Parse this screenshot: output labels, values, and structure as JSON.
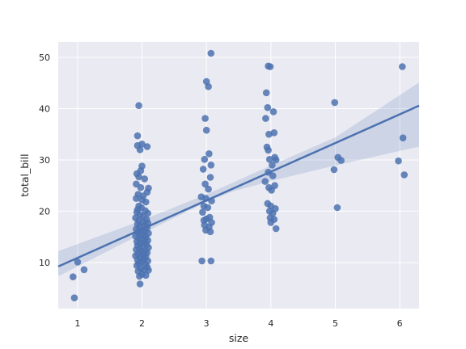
{
  "chart_data": {
    "type": "scatter",
    "xlabel": "size",
    "ylabel": "total_bill",
    "xlim": [
      0.7,
      6.3
    ],
    "ylim": [
      1,
      53
    ],
    "xticks": [
      1,
      2,
      3,
      4,
      5,
      6
    ],
    "yticks": [
      10,
      20,
      30,
      40,
      50
    ],
    "grid": true,
    "colors": {
      "background": "#eaeaf2",
      "grid": "#ffffff",
      "points": "#4c72b0",
      "line": "#4c72b0",
      "band": "#4c72b0"
    },
    "regression": {
      "slope": 5.6,
      "intercept": 5.3,
      "ci_lower": [
        [
          0.7,
          7.3
        ],
        [
          2.0,
          15.6
        ],
        [
          3.0,
          21.8
        ],
        [
          3.4,
          23.8
        ],
        [
          4.0,
          25.9
        ],
        [
          5.0,
          28.9
        ],
        [
          6.3,
          32.6
        ]
      ],
      "ci_upper": [
        [
          0.7,
          12.2
        ],
        [
          2.0,
          18.2
        ],
        [
          3.0,
          23.3
        ],
        [
          3.4,
          25.5
        ],
        [
          4.0,
          28.9
        ],
        [
          5.0,
          34.4
        ],
        [
          6.3,
          45.1
        ]
      ]
    },
    "points": [
      [
        0.93,
        7.2
      ],
      [
        0.95,
        3.1
      ],
      [
        1.0,
        10.1
      ],
      [
        1.1,
        8.6
      ],
      [
        1.95,
        40.6
      ],
      [
        1.93,
        34.7
      ],
      [
        2.0,
        33.1
      ],
      [
        1.93,
        32.8
      ],
      [
        1.97,
        32.0
      ],
      [
        2.08,
        32.6
      ],
      [
        2.0,
        28.8
      ],
      [
        1.98,
        27.9
      ],
      [
        1.92,
        27.3
      ],
      [
        1.95,
        26.7
      ],
      [
        2.04,
        26.3
      ],
      [
        1.91,
        25.3
      ],
      [
        1.98,
        24.6
      ],
      [
        2.1,
        24.5
      ],
      [
        2.08,
        23.7
      ],
      [
        1.94,
        23.3
      ],
      [
        2.02,
        23.0
      ],
      [
        1.91,
        22.5
      ],
      [
        2.0,
        22.2
      ],
      [
        2.06,
        21.8
      ],
      [
        1.95,
        21.0
      ],
      [
        1.99,
        20.7
      ],
      [
        1.93,
        20.3
      ],
      [
        2.05,
        20.1
      ],
      [
        1.92,
        19.8
      ],
      [
        2.09,
        19.6
      ],
      [
        1.97,
        19.3
      ],
      [
        2.02,
        19.0
      ],
      [
        1.9,
        18.7
      ],
      [
        2.07,
        18.4
      ],
      [
        1.95,
        18.2
      ],
      [
        2.01,
        17.9
      ],
      [
        2.09,
        17.7
      ],
      [
        1.93,
        17.5
      ],
      [
        2.04,
        17.2
      ],
      [
        1.96,
        17.0
      ],
      [
        2.08,
        16.8
      ],
      [
        1.91,
        16.5
      ],
      [
        2.0,
        16.3
      ],
      [
        2.05,
        16.1
      ],
      [
        1.94,
        15.9
      ],
      [
        2.1,
        15.7
      ],
      [
        1.97,
        15.5
      ],
      [
        2.03,
        15.3
      ],
      [
        1.9,
        15.1
      ],
      [
        2.06,
        14.9
      ],
      [
        1.95,
        14.7
      ],
      [
        2.0,
        14.5
      ],
      [
        2.09,
        14.3
      ],
      [
        1.92,
        14.1
      ],
      [
        2.04,
        13.9
      ],
      [
        1.97,
        13.7
      ],
      [
        2.07,
        13.5
      ],
      [
        1.93,
        13.3
      ],
      [
        2.01,
        13.1
      ],
      [
        2.1,
        12.9
      ],
      [
        1.96,
        12.7
      ],
      [
        1.91,
        12.5
      ],
      [
        2.05,
        12.3
      ],
      [
        1.99,
        12.1
      ],
      [
        2.08,
        11.9
      ],
      [
        1.94,
        11.7
      ],
      [
        2.02,
        11.5
      ],
      [
        1.9,
        11.3
      ],
      [
        2.06,
        11.1
      ],
      [
        1.97,
        10.9
      ],
      [
        2.03,
        10.7
      ],
      [
        1.93,
        10.5
      ],
      [
        2.09,
        10.3
      ],
      [
        2.0,
        10.1
      ],
      [
        1.95,
        9.8
      ],
      [
        2.05,
        9.6
      ],
      [
        1.92,
        9.4
      ],
      [
        2.08,
        9.1
      ],
      [
        1.98,
        8.8
      ],
      [
        2.03,
        8.6
      ],
      [
        1.94,
        8.3
      ],
      [
        2.1,
        8.5
      ],
      [
        2.0,
        7.7
      ],
      [
        2.06,
        7.5
      ],
      [
        1.96,
        7.3
      ],
      [
        1.97,
        5.8
      ],
      [
        3.07,
        50.8
      ],
      [
        3.0,
        45.3
      ],
      [
        3.03,
        44.3
      ],
      [
        2.98,
        38.1
      ],
      [
        3.0,
        35.8
      ],
      [
        3.04,
        31.2
      ],
      [
        2.97,
        30.1
      ],
      [
        3.07,
        29.0
      ],
      [
        2.95,
        28.2
      ],
      [
        3.06,
        26.6
      ],
      [
        2.98,
        25.3
      ],
      [
        3.03,
        24.3
      ],
      [
        2.92,
        22.8
      ],
      [
        2.99,
        22.5
      ],
      [
        3.08,
        22.0
      ],
      [
        2.96,
        21.0
      ],
      [
        3.02,
        20.7
      ],
      [
        2.94,
        19.8
      ],
      [
        3.05,
        18.8
      ],
      [
        3.0,
        18.5
      ],
      [
        2.96,
        18.2
      ],
      [
        3.08,
        17.8
      ],
      [
        2.97,
        17.3
      ],
      [
        3.04,
        16.9
      ],
      [
        2.99,
        16.3
      ],
      [
        3.06,
        16.0
      ],
      [
        2.93,
        10.3
      ],
      [
        3.07,
        10.3
      ],
      [
        3.96,
        48.3
      ],
      [
        3.99,
        48.2
      ],
      [
        3.93,
        43.1
      ],
      [
        3.95,
        40.2
      ],
      [
        4.04,
        39.4
      ],
      [
        3.92,
        38.1
      ],
      [
        3.97,
        35.0
      ],
      [
        4.05,
        35.3
      ],
      [
        3.94,
        32.5
      ],
      [
        3.96,
        31.9
      ],
      [
        4.06,
        30.5
      ],
      [
        3.98,
        30.1
      ],
      [
        4.08,
        30.0
      ],
      [
        4.02,
        29.0
      ],
      [
        3.96,
        27.6
      ],
      [
        4.03,
        26.9
      ],
      [
        3.91,
        25.8
      ],
      [
        4.06,
        25.0
      ],
      [
        3.97,
        24.6
      ],
      [
        4.01,
        24.1
      ],
      [
        3.95,
        21.5
      ],
      [
        4.0,
        21.0
      ],
      [
        4.07,
        20.5
      ],
      [
        3.98,
        20.0
      ],
      [
        4.03,
        19.6
      ],
      [
        3.99,
        18.7
      ],
      [
        4.05,
        18.4
      ],
      [
        4.0,
        17.8
      ],
      [
        4.08,
        16.6
      ],
      [
        4.99,
        41.2
      ],
      [
        5.04,
        30.5
      ],
      [
        5.09,
        29.9
      ],
      [
        4.98,
        28.1
      ],
      [
        5.03,
        20.7
      ],
      [
        6.04,
        48.2
      ],
      [
        6.05,
        34.3
      ],
      [
        5.98,
        29.8
      ],
      [
        6.07,
        27.1
      ]
    ]
  }
}
